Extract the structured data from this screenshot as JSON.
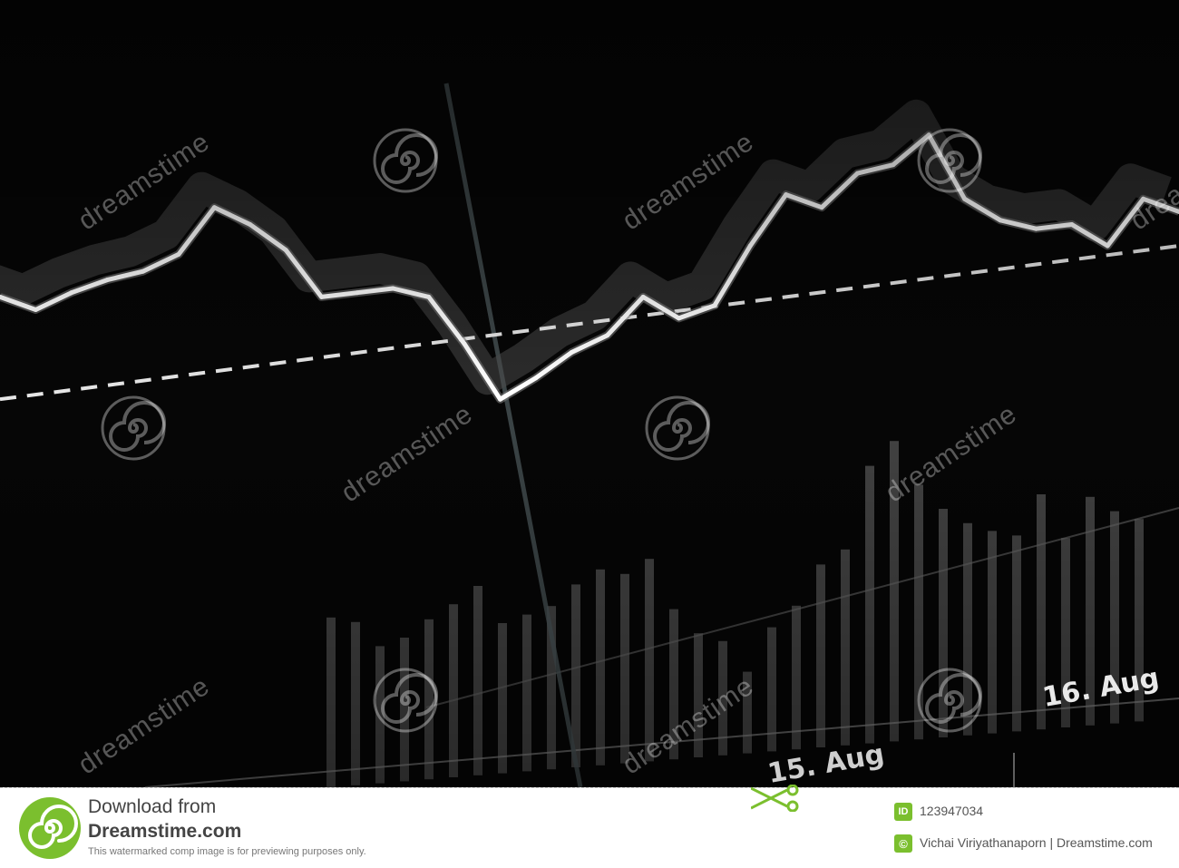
{
  "chart_data": {
    "type": "line",
    "x_tick_labels": [
      "15. Aug",
      "16. Aug"
    ],
    "series": [
      {
        "values": [
          58,
          55,
          59,
          62,
          64,
          68,
          79,
          75,
          69,
          58,
          59,
          60,
          58,
          47,
          34,
          39,
          45,
          49,
          58,
          53,
          56,
          70,
          82,
          79,
          87,
          89,
          96,
          81,
          76,
          74,
          75,
          70,
          81,
          78
        ]
      }
    ],
    "moving_average": [
      34,
      70
    ],
    "volume": [
      52,
      50,
      42,
      44,
      49,
      53,
      58,
      46,
      48,
      50,
      56,
      60,
      58,
      62,
      46,
      38,
      35,
      25,
      38,
      44,
      56,
      60,
      85,
      92,
      78,
      70,
      65,
      62,
      60,
      72,
      58,
      70,
      65,
      62
    ],
    "background": "#060606",
    "line_color": "#ffffff"
  },
  "watermark": {
    "brand": "dreamstime",
    "logo_icon": "spiral-logo-icon"
  },
  "footer": {
    "download_line1": "Download from",
    "download_line2": "Dreamstime.com",
    "note": "This watermarked comp image is for previewing purposes only.",
    "id_badge": "ID",
    "id_value": "123947034",
    "author_badge": "©",
    "author_value": "Vichai Viriyathanaporn | Dreamstime.com",
    "accent_color": "#7bbf2e"
  }
}
